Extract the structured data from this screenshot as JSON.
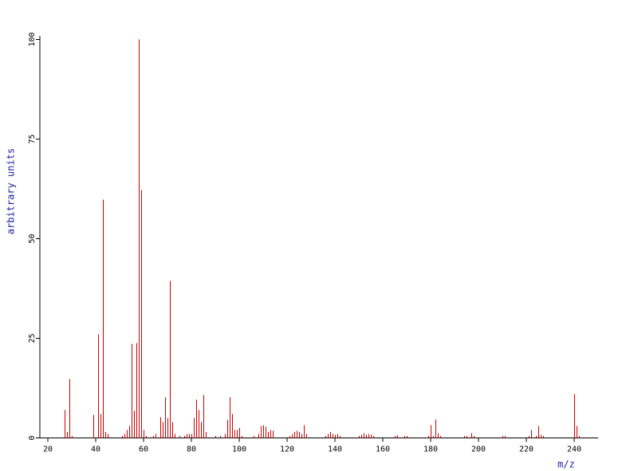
{
  "chart_data": {
    "type": "stem",
    "xlabel": "m/z",
    "ylabel": "arbitrary units",
    "color": "#cc0000",
    "x": [
      27,
      28,
      29,
      30,
      39,
      41,
      42,
      43,
      44,
      45,
      51,
      52,
      53,
      54,
      55,
      56,
      57,
      58,
      59,
      60,
      61,
      64,
      65,
      67,
      68,
      69,
      70,
      71,
      72,
      73,
      75,
      77,
      78,
      79,
      80,
      81,
      82,
      83,
      84,
      85,
      86,
      90,
      92,
      94,
      95,
      96,
      97,
      98,
      99,
      100,
      101,
      106,
      108,
      109,
      110,
      111,
      112,
      113,
      114,
      121,
      122,
      123,
      124,
      125,
      126,
      127,
      128,
      136,
      137,
      138,
      139,
      140,
      141,
      142,
      150,
      151,
      152,
      153,
      154,
      155,
      156,
      165,
      166,
      169,
      170,
      179,
      180,
      181,
      182,
      183,
      184,
      194,
      195,
      197,
      198,
      210,
      211,
      221,
      222,
      224,
      225,
      226,
      227,
      240,
      241,
      242
    ],
    "values": [
      7,
      1.5,
      14.8,
      0.5,
      5.8,
      26,
      6,
      59.8,
      1.5,
      1,
      0.5,
      1,
      2,
      3,
      23.6,
      6.8,
      23.8,
      100,
      62.2,
      2,
      0.5,
      0.5,
      1,
      5.2,
      4,
      10.2,
      5,
      39.4,
      4,
      1,
      0.5,
      0.5,
      1,
      1,
      1,
      5,
      9.6,
      7,
      4,
      10.8,
      1.5,
      0.5,
      0.5,
      1,
      4.5,
      10.2,
      6,
      2,
      2,
      2.5,
      0.5,
      0.5,
      1,
      3,
      3.2,
      2.8,
      1.5,
      2,
      1.8,
      0.5,
      1,
      1.5,
      1.8,
      1.5,
      1,
      3.2,
      1,
      0.5,
      1,
      1.5,
      1,
      0.8,
      1,
      0.5,
      0.5,
      0.8,
      1.2,
      0.8,
      1,
      0.8,
      0.5,
      0.5,
      0.7,
      0.5,
      0.5,
      0.5,
      3.2,
      0.5,
      4.6,
      1.2,
      0.5,
      0.5,
      0.5,
      1.2,
      0.5,
      0.5,
      0.5,
      0.5,
      2,
      0.5,
      3,
      0.8,
      0.5,
      11,
      3,
      0.5
    ],
    "xlim": [
      16.67,
      250
    ],
    "ylim": [
      0,
      100
    ],
    "xticks": [
      20,
      40,
      60,
      80,
      100,
      120,
      140,
      160,
      180,
      200,
      220,
      240
    ],
    "yticks": [
      0,
      25,
      50,
      75,
      100
    ]
  }
}
